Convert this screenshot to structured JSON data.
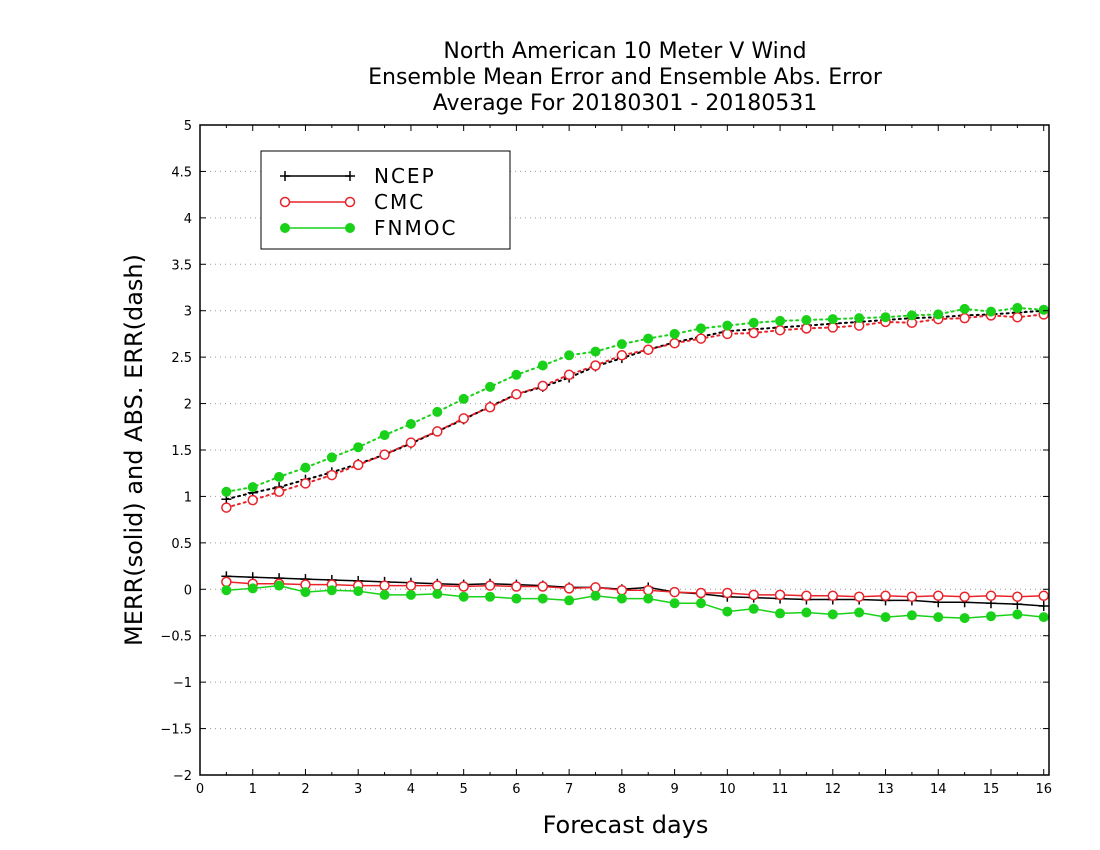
{
  "chart_data": {
    "type": "line",
    "title": [
      "North American 10 Meter V Wind",
      "Ensemble Mean Error and Ensemble Abs. Error",
      "Average For 20180301 - 20180531"
    ],
    "xlabel": "Forecast days",
    "ylabel": "MERR(solid) and ABS. ERR(dash)",
    "xlim": [
      0,
      16.1
    ],
    "ylim": [
      -2,
      5
    ],
    "xticks": [
      0,
      1,
      2,
      3,
      4,
      5,
      6,
      7,
      8,
      9,
      10,
      11,
      12,
      13,
      14,
      15,
      16
    ],
    "xtick_labels": [
      "0",
      "1",
      "2",
      "3",
      "4",
      "5",
      "6",
      "7",
      "8",
      "9",
      "10",
      "11",
      "12",
      "13",
      "14",
      "15",
      "16"
    ],
    "yticks": [
      -2,
      -1.5,
      -1,
      -0.5,
      0,
      0.5,
      1,
      1.5,
      2,
      2.5,
      3,
      3.5,
      4,
      4.5,
      5
    ],
    "ytick_labels": [
      "−2",
      "−1.5",
      "−1",
      "−0.5",
      "0",
      "0.5",
      "1",
      "1.5",
      "2",
      "2.5",
      "3",
      "3.5",
      "4",
      "4.5",
      "5"
    ],
    "grid": "horizontal dotted",
    "legend_position": "top-left",
    "x": [
      0.5,
      1,
      1.5,
      2,
      2.5,
      3,
      3.5,
      4,
      4.5,
      5,
      5.5,
      6,
      6.5,
      7,
      7.5,
      8,
      8.5,
      9,
      9.5,
      10,
      10.5,
      11,
      11.5,
      12,
      12.5,
      13,
      13.5,
      14,
      14.5,
      15,
      15.5,
      16
    ],
    "series": [
      {
        "name": "NCEP",
        "color": "#000000",
        "marker": "plus",
        "merr": [
          0.14,
          0.13,
          0.12,
          0.11,
          0.1,
          0.09,
          0.08,
          0.07,
          0.06,
          0.05,
          0.06,
          0.05,
          0.04,
          0.02,
          0.02,
          0.0,
          0.02,
          -0.03,
          -0.05,
          -0.08,
          -0.09,
          -0.1,
          -0.11,
          -0.11,
          -0.11,
          -0.12,
          -0.12,
          -0.14,
          -0.14,
          -0.15,
          -0.16,
          -0.18
        ],
        "abs_err": [
          0.97,
          1.04,
          1.1,
          1.18,
          1.26,
          1.35,
          1.45,
          1.57,
          1.7,
          1.83,
          1.97,
          2.1,
          2.18,
          2.28,
          2.4,
          2.49,
          2.58,
          2.66,
          2.72,
          2.78,
          2.8,
          2.82,
          2.84,
          2.86,
          2.88,
          2.9,
          2.92,
          2.93,
          2.95,
          2.96,
          2.98,
          3.0
        ]
      },
      {
        "name": "CMC",
        "color": "#e8232a",
        "marker": "open-circle",
        "merr": [
          0.08,
          0.06,
          0.06,
          0.05,
          0.05,
          0.04,
          0.04,
          0.04,
          0.04,
          0.03,
          0.04,
          0.03,
          0.03,
          0.01,
          0.02,
          -0.01,
          -0.01,
          -0.03,
          -0.04,
          -0.04,
          -0.06,
          -0.06,
          -0.07,
          -0.07,
          -0.08,
          -0.07,
          -0.08,
          -0.07,
          -0.08,
          -0.07,
          -0.08,
          -0.07
        ],
        "abs_err": [
          0.88,
          0.96,
          1.05,
          1.14,
          1.23,
          1.34,
          1.45,
          1.58,
          1.7,
          1.84,
          1.96,
          2.1,
          2.19,
          2.31,
          2.41,
          2.52,
          2.58,
          2.65,
          2.7,
          2.75,
          2.76,
          2.79,
          2.81,
          2.82,
          2.84,
          2.88,
          2.87,
          2.91,
          2.92,
          2.95,
          2.93,
          2.96
        ]
      },
      {
        "name": "FNMOC",
        "color": "#19d119",
        "marker": "filled-circle",
        "merr": [
          -0.01,
          0.01,
          0.04,
          -0.03,
          -0.01,
          -0.02,
          -0.06,
          -0.06,
          -0.05,
          -0.08,
          -0.08,
          -0.1,
          -0.1,
          -0.12,
          -0.07,
          -0.1,
          -0.1,
          -0.15,
          -0.15,
          -0.24,
          -0.21,
          -0.26,
          -0.25,
          -0.27,
          -0.25,
          -0.3,
          -0.28,
          -0.3,
          -0.31,
          -0.29,
          -0.27,
          -0.3
        ],
        "abs_err": [
          1.05,
          1.1,
          1.21,
          1.31,
          1.42,
          1.53,
          1.66,
          1.78,
          1.91,
          2.05,
          2.18,
          2.31,
          2.41,
          2.52,
          2.56,
          2.64,
          2.7,
          2.75,
          2.81,
          2.84,
          2.87,
          2.89,
          2.9,
          2.91,
          2.92,
          2.93,
          2.95,
          2.96,
          3.02,
          2.99,
          3.03,
          3.01
        ]
      }
    ]
  }
}
